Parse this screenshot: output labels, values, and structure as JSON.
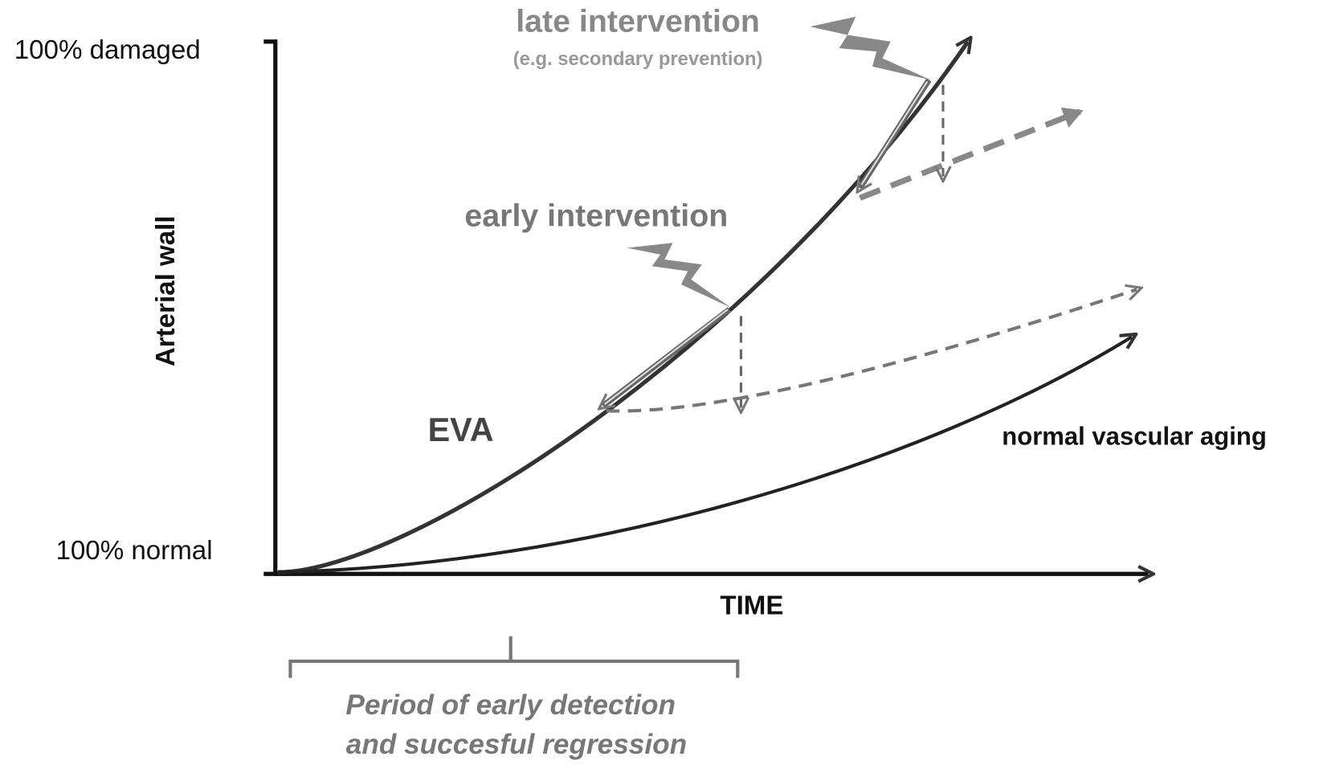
{
  "axes": {
    "y_top": "100% damaged",
    "y_bottom": "100% normal",
    "y_title": "Arterial wall",
    "x_title": "TIME"
  },
  "annotations": {
    "late_intervention": {
      "title": "late intervention",
      "subtitle": "(e.g. secondary prevention)"
    },
    "early_intervention": {
      "title": "early intervention"
    },
    "eva": "EVA",
    "normal_aging": "normal vascular aging"
  },
  "period": {
    "lines": [
      "Period of early detection",
      "and succesful regression"
    ]
  }
}
